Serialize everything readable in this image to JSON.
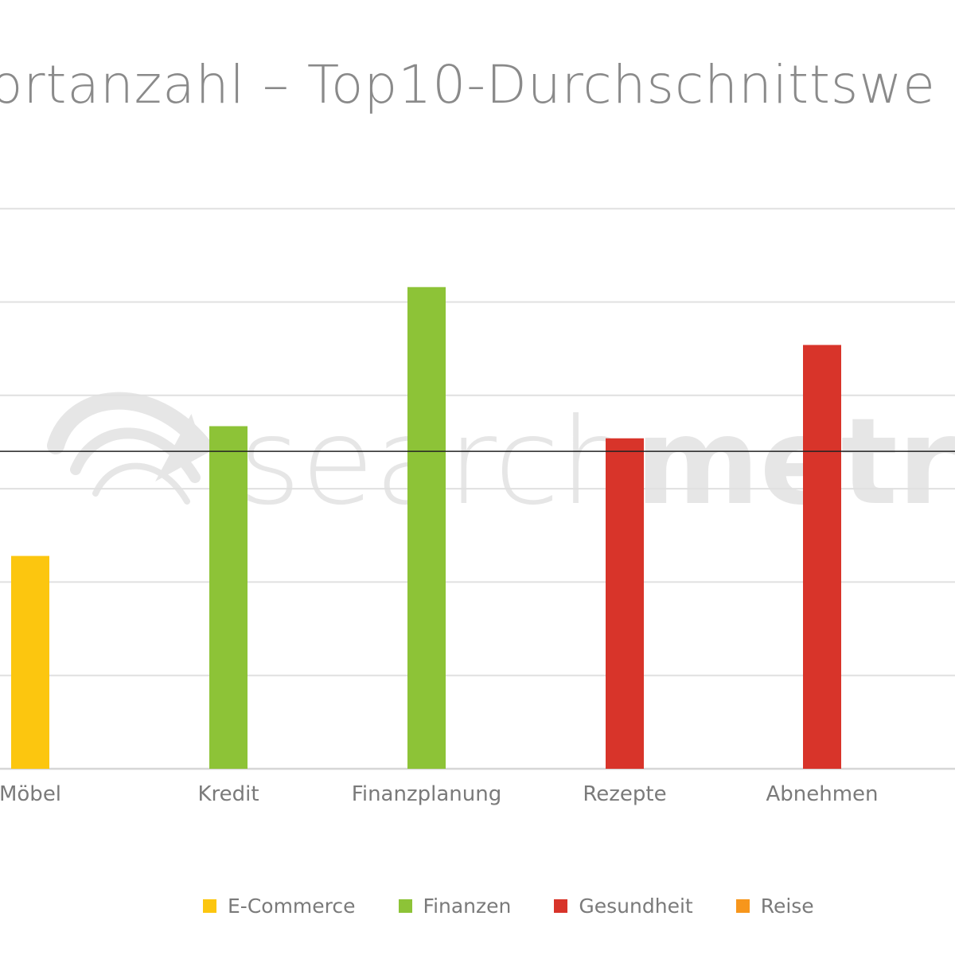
{
  "chart_data": {
    "type": "bar",
    "title": "ortanzahl – Top10-Durchschnittswe",
    "categories": [
      "Möbel",
      "Kredit",
      "Finanzplanung",
      "Rezepte",
      "Abnehmen"
    ],
    "values": [
      2.28,
      3.67,
      5.16,
      3.54,
      4.54
    ],
    "series_of_category": [
      "E-Commerce",
      "Finanzen",
      "Finanzen",
      "Gesundheit",
      "Gesundheit"
    ],
    "reference_line": 3.4,
    "ylim": [
      0,
      6
    ],
    "grid_step": 1,
    "grid": true,
    "legend_position": "bottom",
    "xlabel": "",
    "ylabel": "",
    "legend": [
      {
        "name": "E-Commerce",
        "color": "#fcc60f"
      },
      {
        "name": "Finanzen",
        "color": "#8dc337"
      },
      {
        "name": "Gesundheit",
        "color": "#d8342a"
      },
      {
        "name": "Reise",
        "color": "#f7961c"
      }
    ]
  },
  "watermark": {
    "light": "search",
    "bold": "metrics"
  }
}
